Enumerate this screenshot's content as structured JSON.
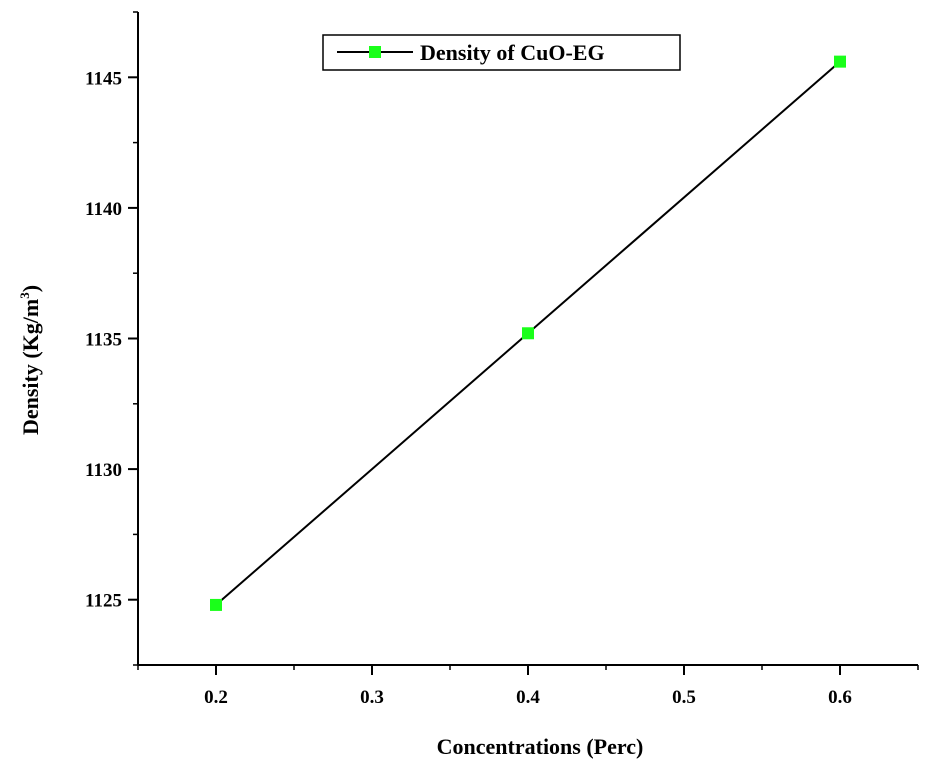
{
  "chart_data": {
    "type": "line",
    "title": "",
    "xlabel": "Concentrations (Perc)",
    "ylabel_main": "Density (Kg/m",
    "ylabel_sup": "3",
    "ylabel_close": ")",
    "x": [
      0.2,
      0.4,
      0.6
    ],
    "series": [
      {
        "name": "Density of CuO-EG",
        "values": [
          1124.8,
          1135.2,
          1145.6
        ],
        "line_color": "#000000",
        "marker_color": "#1aff1a",
        "marker": "square"
      }
    ],
    "xlim": [
      0.15,
      0.65
    ],
    "ylim": [
      1122.5,
      1147.5
    ],
    "xticks": [
      0.2,
      0.3,
      0.4,
      0.5,
      0.6
    ],
    "xtick_labels": [
      "0.2",
      "0.3",
      "0.4",
      "0.5",
      "0.6"
    ],
    "yticks": [
      1125,
      1130,
      1135,
      1140,
      1145
    ],
    "ytick_labels": [
      "1125",
      "1130",
      "1135",
      "1140",
      "1145"
    ],
    "grid": false,
    "legend_position": "top-center"
  }
}
